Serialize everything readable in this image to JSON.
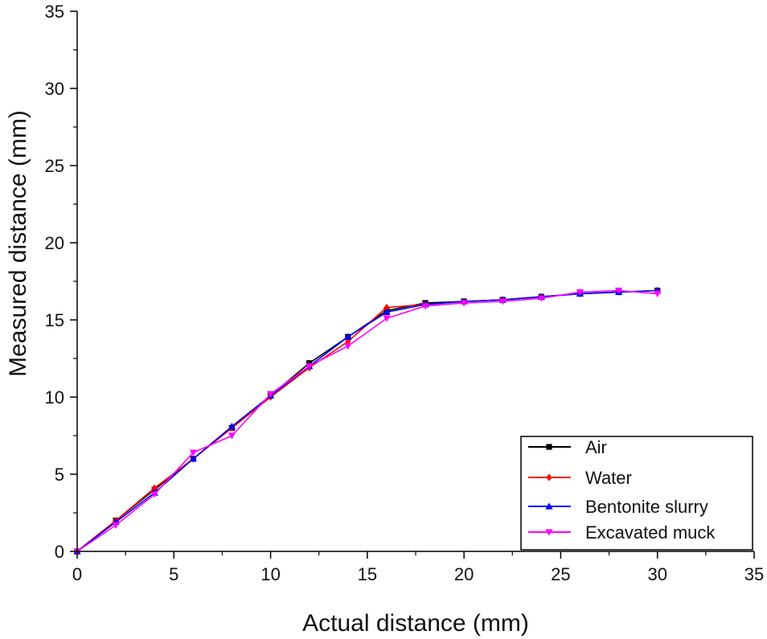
{
  "chart_data": {
    "type": "line",
    "title": "",
    "xlabel": "Actual distance (mm)",
    "ylabel": "Measured distance (mm)",
    "xlim": [
      0,
      35
    ],
    "ylim": [
      0,
      35
    ],
    "x_ticks": [
      "0",
      "5",
      "10",
      "15",
      "20",
      "25",
      "30",
      "35"
    ],
    "y_ticks": [
      "0",
      "5",
      "10",
      "15",
      "20",
      "25",
      "30",
      "35"
    ],
    "grid": false,
    "legend_position": "bottom-right",
    "x": [
      0,
      2,
      4,
      6,
      8,
      10,
      12,
      14,
      16,
      18,
      20,
      22,
      24,
      26,
      28,
      30
    ],
    "series": [
      {
        "name": "Air",
        "color": "#000000",
        "marker": "square",
        "values": [
          0,
          2.0,
          4.0,
          6.0,
          8.0,
          10.1,
          12.2,
          13.9,
          15.6,
          16.1,
          16.2,
          16.3,
          16.5,
          16.7,
          16.8,
          16.9
        ]
      },
      {
        "name": "Water",
        "color": "#ff0000",
        "marker": "diamond",
        "values": [
          0,
          2.0,
          4.1,
          6.0,
          8.0,
          10.0,
          11.9,
          13.6,
          15.8,
          16.0,
          16.2,
          16.3,
          16.5,
          16.7,
          16.8,
          16.9
        ]
      },
      {
        "name": "Bentonite slurry",
        "color": "#0000ff",
        "marker": "triangle-up",
        "values": [
          0,
          1.9,
          3.8,
          6.0,
          8.1,
          10.1,
          12.0,
          13.9,
          15.5,
          16.0,
          16.2,
          16.3,
          16.5,
          16.7,
          16.8,
          16.9
        ]
      },
      {
        "name": "Excavated muck",
        "color": "#ff00ff",
        "marker": "triangle-down",
        "values": [
          0,
          1.7,
          3.7,
          6.4,
          7.5,
          10.2,
          12.0,
          13.3,
          15.1,
          15.9,
          16.1,
          16.2,
          16.4,
          16.8,
          16.9,
          16.7
        ]
      }
    ]
  }
}
